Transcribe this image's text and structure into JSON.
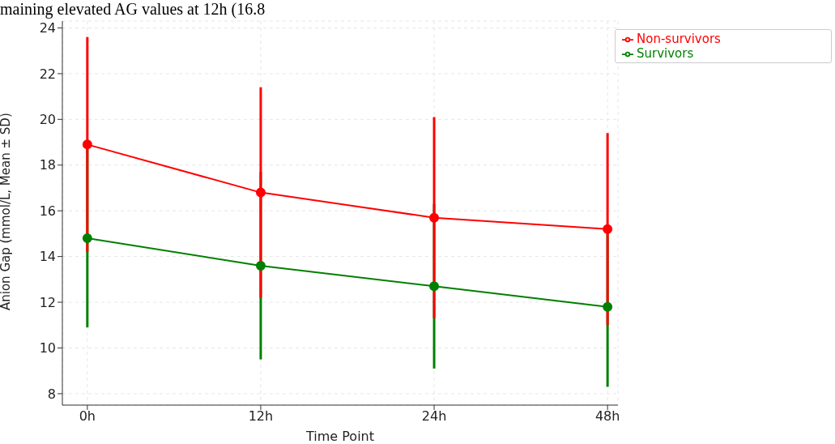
{
  "chart_data": {
    "type": "line",
    "xlabel": "Time Point",
    "ylabel": "Anion Gap (mmol/L, Mean ± SD)",
    "annotations": [
      "maining elevated AG values at 12h (16.8"
    ],
    "categories": [
      "0h",
      "12h",
      "24h",
      "48h"
    ],
    "series": [
      {
        "name": "Survivors",
        "color": "#008000",
        "values": [
          14.8,
          13.6,
          12.7,
          11.8
        ],
        "errors": [
          3.9,
          4.1,
          3.6,
          3.5
        ]
      },
      {
        "name": "Non-survivors",
        "color": "#ff0000",
        "values": [
          18.9,
          16.8,
          15.7,
          15.2
        ],
        "errors": [
          4.7,
          4.6,
          4.4,
          4.2
        ]
      }
    ],
    "ylim": [
      7.5,
      24.3
    ],
    "yticks": [
      8,
      10,
      12,
      14,
      16,
      18,
      20,
      22,
      24
    ],
    "grid": true,
    "legend": "top right",
    "marker": "circle",
    "line_style": "solid"
  }
}
